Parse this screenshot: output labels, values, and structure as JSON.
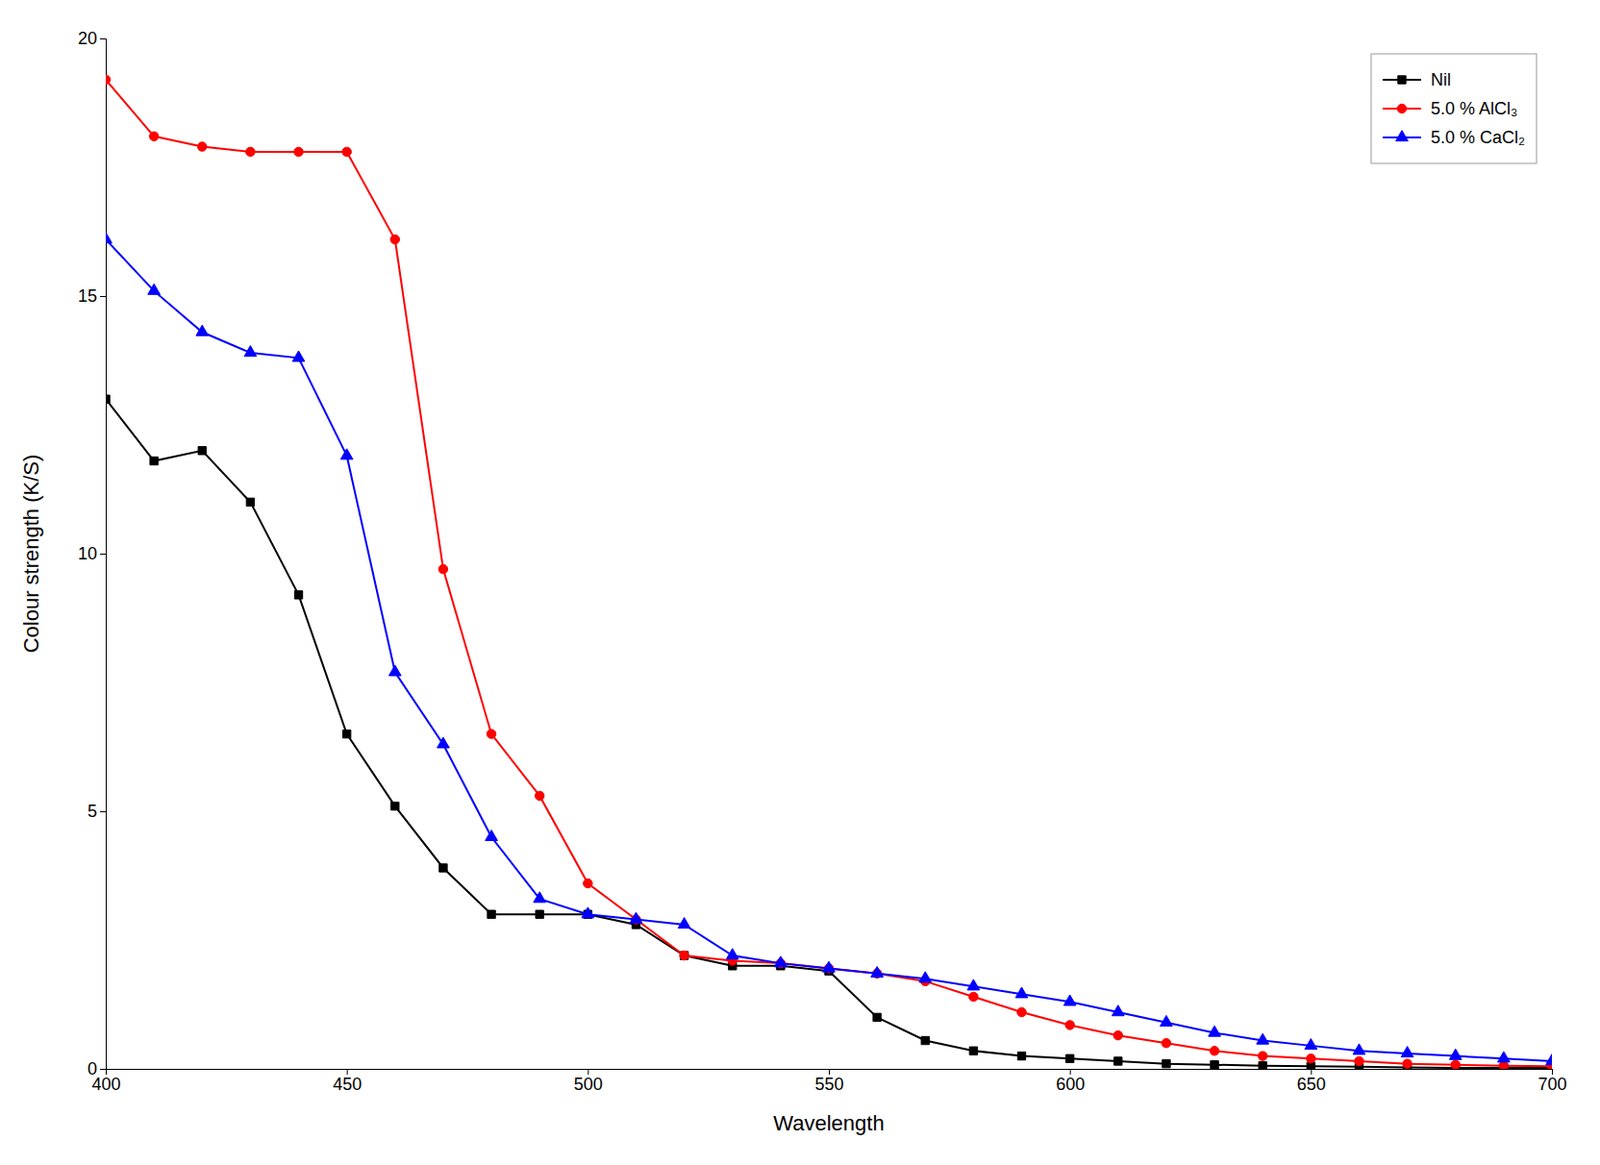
{
  "chart_data": {
    "type": "line",
    "xlabel": "Wavelength",
    "ylabel": "Colour strength (K/S)",
    "x": [
      400,
      410,
      420,
      430,
      440,
      450,
      460,
      470,
      480,
      490,
      500,
      510,
      520,
      530,
      540,
      550,
      560,
      570,
      580,
      590,
      600,
      610,
      620,
      630,
      640,
      650,
      660,
      670,
      680,
      690,
      700
    ],
    "xlim": [
      400,
      700
    ],
    "xticks": [
      400,
      450,
      500,
      550,
      600,
      650,
      700
    ],
    "ylim": [
      0,
      20
    ],
    "yticks": [
      0,
      5,
      10,
      15,
      20
    ],
    "grid": false,
    "legend": "upper right",
    "series": [
      {
        "name": "Nil",
        "color": "#000000",
        "marker": "square",
        "values": [
          13.0,
          11.8,
          12.0,
          11.0,
          9.2,
          6.5,
          5.1,
          3.9,
          3.0,
          3.0,
          3.0,
          2.8,
          2.2,
          2.0,
          2.0,
          1.9,
          1.0,
          0.55,
          0.35,
          0.25,
          0.2,
          0.15,
          0.1,
          0.08,
          0.06,
          0.05,
          0.04,
          0.03,
          0.02,
          0.02,
          0.02
        ]
      },
      {
        "name": "5.0 % AlCl₃",
        "color": "#ff0000",
        "marker": "circle",
        "values": [
          19.2,
          18.1,
          17.9,
          17.8,
          17.8,
          17.8,
          16.1,
          9.7,
          6.5,
          5.3,
          3.6,
          2.9,
          2.2,
          2.1,
          2.05,
          1.95,
          1.85,
          1.7,
          1.4,
          1.1,
          0.85,
          0.65,
          0.5,
          0.35,
          0.25,
          0.2,
          0.15,
          0.1,
          0.08,
          0.06,
          0.05
        ]
      },
      {
        "name": "5.0 % CaCl₂",
        "color": "#0000ff",
        "marker": "triangle",
        "values": [
          16.1,
          15.1,
          14.3,
          13.9,
          13.8,
          11.9,
          7.7,
          6.3,
          4.5,
          3.3,
          3.0,
          2.9,
          2.8,
          2.2,
          2.05,
          1.95,
          1.85,
          1.75,
          1.6,
          1.45,
          1.3,
          1.1,
          0.9,
          0.7,
          0.55,
          0.45,
          0.35,
          0.3,
          0.25,
          0.2,
          0.15
        ]
      }
    ]
  }
}
